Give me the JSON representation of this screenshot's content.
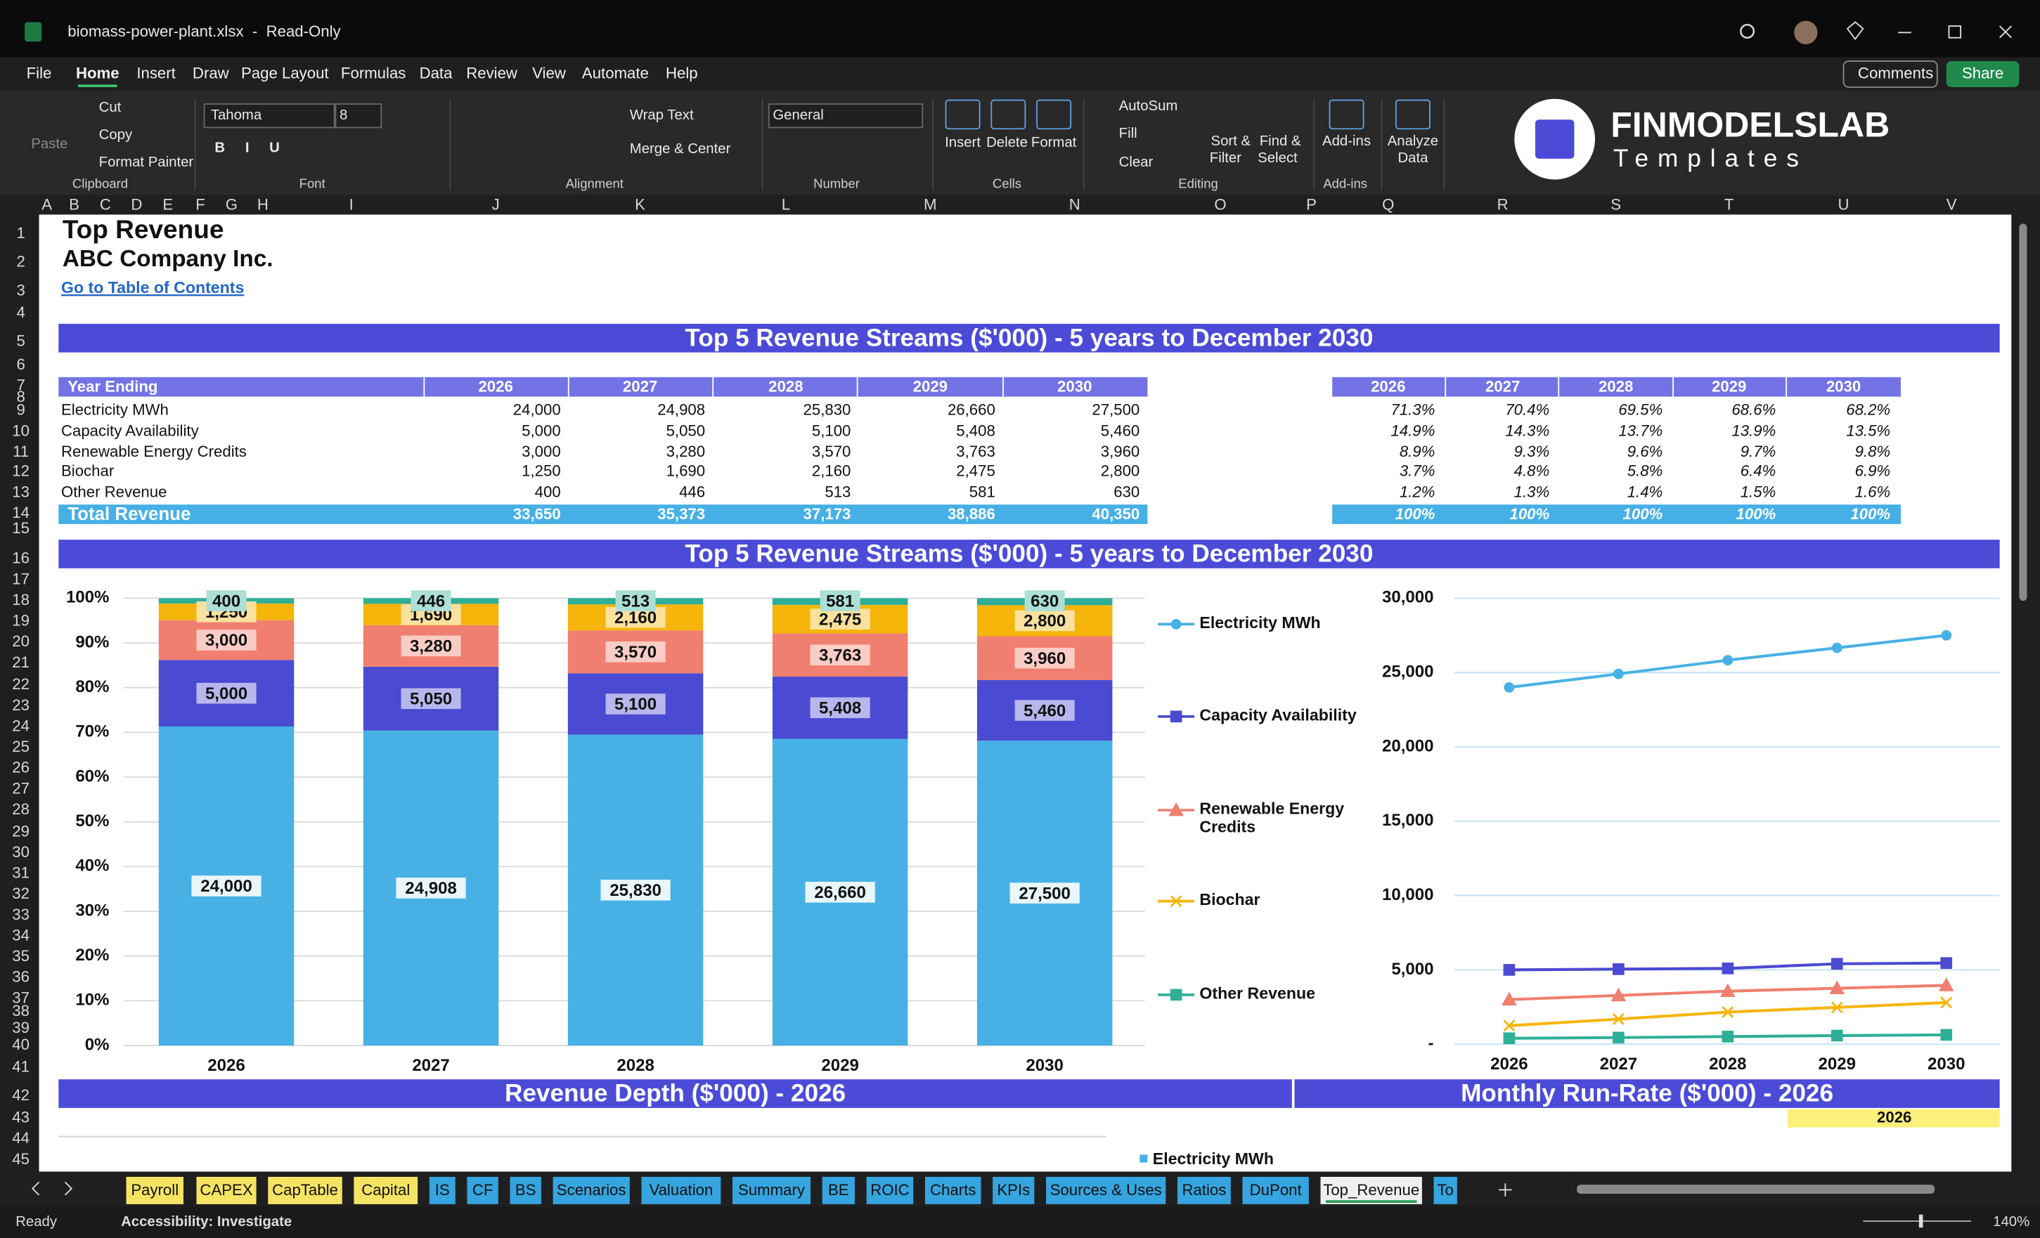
{
  "window": {
    "title": "biomass-power-plant.xlsx  -  Read-Only"
  },
  "menu": [
    "File",
    "Home",
    "Insert",
    "Draw",
    "Page Layout",
    "Formulas",
    "Data",
    "Review",
    "View",
    "Automate",
    "Help"
  ],
  "actions": [
    "Comments",
    "Share"
  ],
  "ribbon": {
    "buttons": [
      "Paste",
      "Cut",
      "Copy",
      "Format Painter",
      "Tahoma",
      "8",
      "B",
      "I",
      "U",
      "Wrap Text",
      "Merge & Center",
      "General",
      "Insert",
      "Delete",
      "Format",
      "AutoSum",
      "Fill",
      "Clear",
      "Sort &",
      "Filter",
      "Find &",
      "Select",
      "Add-ins",
      "Analyze",
      "Data"
    ],
    "groups": [
      "Clipboard",
      "Font",
      "Alignment",
      "Number",
      "Cells",
      "Editing",
      "Add-ins"
    ]
  },
  "logo": {
    "brand": "FINMODELSLAB",
    "tagline": "Templates"
  },
  "columns": [
    "A",
    "B",
    "C",
    "D",
    "E",
    "F",
    "G",
    "H",
    "I",
    "J",
    "K",
    "L",
    "M",
    "N",
    "O",
    "P",
    "Q",
    "R",
    "S",
    "T",
    "U",
    "V"
  ],
  "rows": [
    1,
    2,
    3,
    4,
    5,
    6,
    7,
    8,
    9,
    10,
    11,
    12,
    13,
    14,
    15,
    16,
    17,
    18,
    19,
    20,
    21,
    22,
    23,
    24,
    25,
    26,
    27,
    28,
    29,
    30,
    31,
    32,
    33,
    34,
    35,
    36,
    37,
    38,
    39,
    40,
    41,
    42,
    43,
    44,
    45
  ],
  "sheet": {
    "title": "Top Revenue",
    "company": "ABC Company Inc.",
    "link": "Go to Table of Contents",
    "banner": "Top 5 Revenue Streams ($'000) - 5 years to December 2030",
    "header_label": "Year Ending",
    "years": [
      "2026",
      "2027",
      "2028",
      "2029",
      "2030"
    ],
    "streams": [
      {
        "name": "Electricity MWh",
        "color": "#47b1e6",
        "marker": "circle",
        "values": [
          24000,
          24908,
          25830,
          26660,
          27500
        ],
        "value_labels": [
          "24,000",
          "24,908",
          "25,830",
          "26,660",
          "27,500"
        ],
        "shares": [
          "71.3%",
          "70.4%",
          "69.5%",
          "68.6%",
          "68.2%"
        ]
      },
      {
        "name": "Capacity Availability",
        "color": "#4a4ad2",
        "marker": "square",
        "values": [
          5000,
          5050,
          5100,
          5408,
          5460
        ],
        "value_labels": [
          "5,000",
          "5,050",
          "5,100",
          "5,408",
          "5,460"
        ],
        "shares": [
          "14.9%",
          "14.3%",
          "13.7%",
          "13.9%",
          "13.5%"
        ]
      },
      {
        "name": "Renewable Energy Credits",
        "color": "#f07f6f",
        "marker": "triangle",
        "values": [
          3000,
          3280,
          3570,
          3763,
          3960
        ],
        "value_labels": [
          "3,000",
          "3,280",
          "3,570",
          "3,763",
          "3,960"
        ],
        "shares": [
          "8.9%",
          "9.3%",
          "9.6%",
          "9.7%",
          "9.8%"
        ]
      },
      {
        "name": "Biochar",
        "color": "#f5b50a",
        "marker": "cross",
        "values": [
          1250,
          1690,
          2160,
          2475,
          2800
        ],
        "value_labels": [
          "1,250",
          "1,690",
          "2,160",
          "2,475",
          "2,800"
        ],
        "shares": [
          "3.7%",
          "4.8%",
          "5.8%",
          "6.4%",
          "6.9%"
        ]
      },
      {
        "name": "Other Revenue",
        "color": "#2fae98",
        "marker": "square",
        "values": [
          400,
          446,
          513,
          581,
          630
        ],
        "value_labels": [
          "400",
          "446",
          "513",
          "581",
          "630"
        ],
        "shares": [
          "1.2%",
          "1.3%",
          "1.4%",
          "1.5%",
          "1.6%"
        ]
      }
    ],
    "total": {
      "name": "Total Revenue",
      "values": [
        33650,
        35373,
        37173,
        38886,
        40350
      ],
      "value_labels": [
        "33,650",
        "35,373",
        "37,173",
        "38,886",
        "40,350"
      ],
      "shares": [
        "100%",
        "100%",
        "100%",
        "100%",
        "100%"
      ]
    },
    "bar_chart": {
      "type": "bar",
      "stacked": true,
      "ylim": [
        0,
        100
      ],
      "yticks": [
        {
          "value": 0,
          "label": "0%"
        },
        {
          "value": 10,
          "label": "10%"
        },
        {
          "value": 20,
          "label": "20%"
        },
        {
          "value": 30,
          "label": "30%"
        },
        {
          "value": 40,
          "label": "40%"
        },
        {
          "value": 50,
          "label": "50%"
        },
        {
          "value": 60,
          "label": "60%"
        },
        {
          "value": 70,
          "label": "70%"
        },
        {
          "value": 80,
          "label": "80%"
        },
        {
          "value": 90,
          "label": "90%"
        },
        {
          "value": 100,
          "label": "100%"
        }
      ],
      "grid": true
    },
    "line_chart": {
      "type": "line",
      "ylim": [
        0,
        30000
      ],
      "yticks": [
        {
          "value": 0,
          "label": "-"
        },
        {
          "value": 5000,
          "label": "5,000"
        },
        {
          "value": 10000,
          "label": "10,000"
        },
        {
          "value": 15000,
          "label": "15,000"
        },
        {
          "value": 20000,
          "label": "20,000"
        },
        {
          "value": 25000,
          "label": "25,000"
        },
        {
          "value": 30000,
          "label": "30,000"
        }
      ],
      "grid": true
    },
    "depth_banner": "Revenue Depth ($'000) - 2026",
    "runrate_banner": "Monthly Run-Rate ($'000) - 2026",
    "runrate_year": "2026"
  },
  "sheet_tabs": [
    {
      "name": "Payroll",
      "color": "#f5e463"
    },
    {
      "name": "CAPEX",
      "color": "#f5e463"
    },
    {
      "name": "CapTable",
      "color": "#f5e463"
    },
    {
      "name": "Capital",
      "color": "#f5e463"
    },
    {
      "name": "IS",
      "color": "#36a4de"
    },
    {
      "name": "CF",
      "color": "#36a4de"
    },
    {
      "name": "BS",
      "color": "#36a4de"
    },
    {
      "name": "Scenarios",
      "color": "#36a4de"
    },
    {
      "name": "Valuation",
      "color": "#36a4de"
    },
    {
      "name": "Summary",
      "color": "#36a4de"
    },
    {
      "name": "BE",
      "color": "#36a4de"
    },
    {
      "name": "ROIC",
      "color": "#36a4de"
    },
    {
      "name": "Charts",
      "color": "#36a4de"
    },
    {
      "name": "KPIs",
      "color": "#36a4de"
    },
    {
      "name": "Sources & Uses",
      "color": "#36a4de"
    },
    {
      "name": "Ratios",
      "color": "#36a4de"
    },
    {
      "name": "DuPont",
      "color": "#36a4de"
    },
    {
      "name": "Top_Revenue",
      "color": "#efefef"
    },
    {
      "name": "To",
      "color": "#36a4de"
    }
  ],
  "status": {
    "ready": "Ready",
    "accessibility": "Accessibility: Investigate",
    "zoom": "140%"
  }
}
